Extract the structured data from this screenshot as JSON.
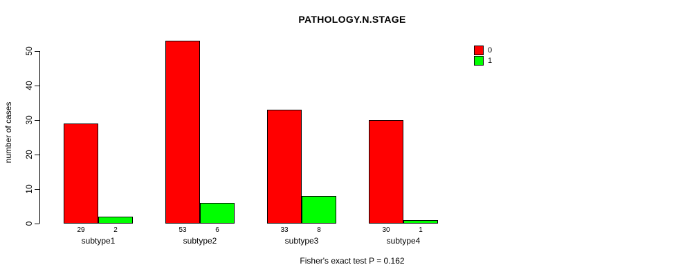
{
  "chart_data": {
    "type": "bar",
    "title": "PATHOLOGY.N.STAGE",
    "xlabel": "",
    "ylabel": "number of cases",
    "categories": [
      "subtype1",
      "subtype2",
      "subtype3",
      "subtype4"
    ],
    "series": [
      {
        "name": "0",
        "color": "#FF0000",
        "values": [
          29,
          53,
          33,
          30
        ]
      },
      {
        "name": "1",
        "color": "#00FF00",
        "values": [
          2,
          6,
          8,
          1
        ]
      }
    ],
    "bar_value_labels": [
      [
        "29",
        "53",
        "33",
        "30"
      ],
      [
        "2",
        "6",
        "8",
        "1"
      ]
    ],
    "ylim": [
      0,
      50
    ],
    "yticks": [
      0,
      10,
      20,
      30,
      40,
      50
    ],
    "grid": false,
    "legend_position": "top-right",
    "annotation": "Fisher's exact test P = 0.162"
  },
  "colors": {
    "series0": "#FF0000",
    "series1": "#00FF00",
    "axis": "#000000",
    "background": "#FFFFFF"
  }
}
